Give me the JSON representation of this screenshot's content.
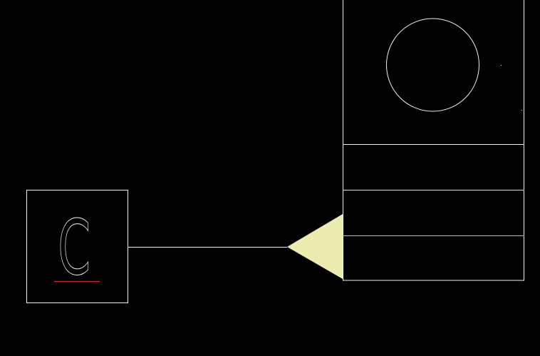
{
  "diagram": {
    "left_box": {
      "glyph": "C"
    },
    "colors": {
      "background": "#000000",
      "stroke": "#f2f2e6",
      "underline": "#c0262a",
      "arrowhead_fill": "#ececb0",
      "divider_dim": "#bdbdbd"
    }
  }
}
